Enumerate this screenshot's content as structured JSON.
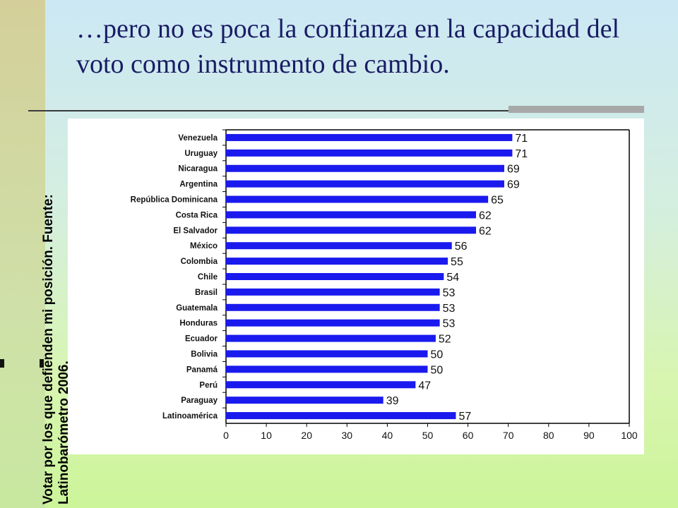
{
  "slide": {
    "title": "…pero no es poca la confianza en la capacidad del voto como instrumento de cambio.",
    "side_caption": "Votar por los que defienden mi posición.  Fuente: Latinobarómetro 2006."
  },
  "colors": {
    "bar": "#1a1aee",
    "title": "#1a1c66"
  },
  "chart_data": {
    "type": "bar",
    "orientation": "horizontal",
    "title": "",
    "xlabel": "",
    "ylabel": "",
    "categories": [
      "Venezuela",
      "Uruguay",
      "Nicaragua",
      "Argentina",
      "República Dominicana",
      "Costa Rica",
      "El Salvador",
      "México",
      "Colombia",
      "Chile",
      "Brasil",
      "Guatemala",
      "Honduras",
      "Ecuador",
      "Bolivia",
      "Panamá",
      "Perú",
      "Paraguay",
      "Latinoamérica"
    ],
    "values": [
      71,
      71,
      69,
      69,
      65,
      62,
      62,
      56,
      55,
      54,
      53,
      53,
      53,
      52,
      50,
      50,
      47,
      39,
      57
    ],
    "value_labels": [
      "71",
      "71",
      "69",
      "69",
      "65",
      "62",
      "62",
      "56",
      "55",
      "54",
      "53",
      "53",
      "53",
      "52",
      "50",
      "50",
      "47",
      "39",
      "57"
    ],
    "xlim": [
      0,
      100
    ],
    "xticks": [
      "0",
      "10",
      "20",
      "30",
      "40",
      "50",
      "60",
      "70",
      "80",
      "90",
      "100"
    ],
    "grid": false,
    "legend": "none"
  }
}
